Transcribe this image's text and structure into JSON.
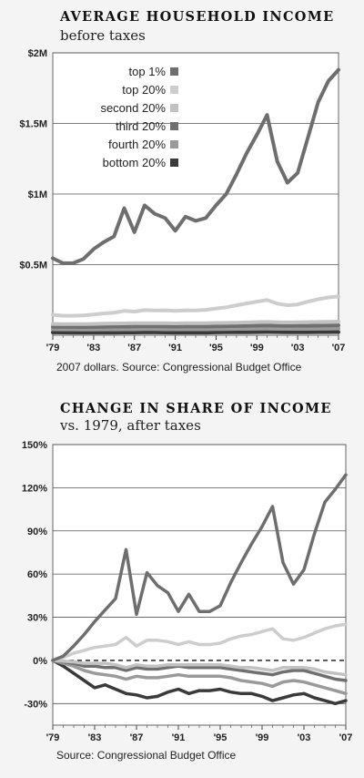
{
  "chart_data": [
    {
      "type": "line",
      "title": "AVERAGE HOUSEHOLD INCOME",
      "subtitle": "before taxes",
      "source": "2007 dollars. Source: Congressional Budget Office",
      "x": [
        1979,
        1980,
        1981,
        1982,
        1983,
        1984,
        1985,
        1986,
        1987,
        1988,
        1989,
        1990,
        1991,
        1992,
        1993,
        1994,
        1995,
        1996,
        1997,
        1998,
        1999,
        2000,
        2001,
        2002,
        2003,
        2004,
        2005,
        2006,
        2007
      ],
      "x_tick_labels": [
        "'79",
        "'83",
        "'87",
        "'91",
        "'95",
        "'99",
        "'03",
        "'07"
      ],
      "x_tick_values": [
        1979,
        1983,
        1987,
        1991,
        1995,
        1999,
        2003,
        2007
      ],
      "y_tick_labels": [
        "$0.5M",
        "$1M",
        "$1.5M",
        "$2M"
      ],
      "y_tick_values": [
        500000,
        1000000,
        1500000,
        2000000
      ],
      "ylim": [
        0,
        2000000
      ],
      "grid": true,
      "legend_position": "top-left",
      "series": [
        {
          "name": "top 1%",
          "color": "#6e6e6e",
          "values": [
            545000,
            510000,
            510000,
            540000,
            610000,
            660000,
            700000,
            900000,
            730000,
            920000,
            860000,
            830000,
            740000,
            840000,
            810000,
            830000,
            920000,
            1000000,
            1140000,
            1290000,
            1420000,
            1560000,
            1230000,
            1080000,
            1150000,
            1400000,
            1650000,
            1800000,
            1880000
          ]
        },
        {
          "name": "top 20%",
          "color": "#cdcdcd",
          "values": [
            145000,
            138000,
            138000,
            140000,
            147000,
            155000,
            160000,
            172000,
            168000,
            178000,
            176000,
            177000,
            172000,
            177000,
            176000,
            180000,
            190000,
            198000,
            212000,
            225000,
            238000,
            250000,
            224000,
            213000,
            218000,
            238000,
            255000,
            268000,
            275000
          ]
        },
        {
          "name": "second 20%",
          "color": "#c2c2c2",
          "values": [
            80000,
            79000,
            79000,
            79000,
            80000,
            82000,
            83000,
            84000,
            85000,
            86000,
            86000,
            85000,
            84000,
            85000,
            85000,
            86000,
            87000,
            88000,
            89000,
            91000,
            93000,
            94000,
            92000,
            91000,
            92000,
            93000,
            94000,
            95000,
            96000
          ]
        },
        {
          "name": "third 20%",
          "color": "#707070",
          "values": [
            60000,
            59000,
            59000,
            58000,
            59000,
            60000,
            61000,
            61000,
            62000,
            63000,
            63000,
            62000,
            61000,
            62000,
            62000,
            62000,
            63000,
            64000,
            65000,
            66000,
            68000,
            69000,
            67000,
            66000,
            67000,
            67000,
            68000,
            69000,
            70000
          ]
        },
        {
          "name": "fourth 20%",
          "color": "#9a9a9a",
          "values": [
            42000,
            41000,
            41000,
            40000,
            40000,
            41000,
            41000,
            42000,
            42000,
            43000,
            43000,
            42000,
            42000,
            42000,
            42000,
            42000,
            43000,
            44000,
            45000,
            46000,
            47000,
            47000,
            46000,
            46000,
            46000,
            46000,
            47000,
            48000,
            48000
          ]
        },
        {
          "name": "bottom 20%",
          "color": "#3a3a3a",
          "values": [
            20000,
            19500,
            19000,
            18500,
            18500,
            19000,
            19000,
            19500,
            19500,
            20000,
            20000,
            19500,
            19000,
            19000,
            19000,
            19000,
            20000,
            20500,
            21000,
            21500,
            22000,
            22500,
            22000,
            21500,
            21500,
            21500,
            22000,
            22000,
            22500
          ]
        }
      ]
    },
    {
      "type": "line",
      "title": "CHANGE IN SHARE OF INCOME",
      "subtitle": "vs. 1979, after taxes",
      "source": "Source: Congressional Budget Office",
      "x": [
        1979,
        1980,
        1981,
        1982,
        1983,
        1984,
        1985,
        1986,
        1987,
        1988,
        1989,
        1990,
        1991,
        1992,
        1993,
        1994,
        1995,
        1996,
        1997,
        1998,
        1999,
        2000,
        2001,
        2002,
        2003,
        2004,
        2005,
        2006,
        2007
      ],
      "x_tick_labels": [
        "'79",
        "'83",
        "'87",
        "'91",
        "'95",
        "'99",
        "'03",
        "'07"
      ],
      "x_tick_values": [
        1979,
        1983,
        1987,
        1991,
        1995,
        1999,
        2003,
        2007
      ],
      "y_tick_labels": [
        "-30%",
        "0%",
        "30%",
        "60%",
        "90%",
        "120%",
        "150%"
      ],
      "y_tick_values": [
        -30,
        0,
        30,
        60,
        90,
        120,
        150
      ],
      "ylim": [
        -45,
        150
      ],
      "grid": true,
      "zero_line": "dashed",
      "series": [
        {
          "name": "top 1%",
          "color": "#6e6e6e",
          "values": [
            0,
            3,
            10,
            18,
            27,
            35,
            43,
            77,
            32,
            61,
            52,
            47,
            34,
            46,
            34,
            34,
            38,
            54,
            68,
            81,
            93,
            107,
            68,
            53,
            63,
            88,
            110,
            119,
            129
          ]
        },
        {
          "name": "top 20%",
          "color": "#cdcdcd",
          "values": [
            0,
            2,
            5,
            7,
            9,
            10,
            11,
            16,
            10,
            14,
            14,
            13,
            11,
            13,
            11,
            11,
            12,
            15,
            17,
            18,
            20,
            22,
            15,
            14,
            16,
            19,
            22,
            24,
            25
          ]
        },
        {
          "name": "second 20%",
          "color": "#c2c2c2",
          "values": [
            0,
            -0.5,
            -1,
            -2,
            -2,
            -2,
            -3,
            -5,
            -3,
            -4,
            -4,
            -3,
            -3,
            -3,
            -3,
            -3,
            -3,
            -4,
            -5,
            -5,
            -6,
            -7,
            -5,
            -5,
            -5,
            -6,
            -8,
            -9,
            -10
          ]
        },
        {
          "name": "third 20%",
          "color": "#707070",
          "values": [
            0,
            -1,
            -2,
            -4,
            -4,
            -5,
            -5,
            -7,
            -5,
            -6,
            -6,
            -5,
            -4,
            -5,
            -5,
            -5,
            -5,
            -6,
            -7,
            -8,
            -9,
            -10,
            -8,
            -7,
            -7,
            -9,
            -11,
            -13,
            -14
          ]
        },
        {
          "name": "fourth 20%",
          "color": "#9a9a9a",
          "values": [
            0,
            -2,
            -4,
            -7,
            -9,
            -10,
            -11,
            -13,
            -11,
            -12,
            -12,
            -11,
            -10,
            -11,
            -11,
            -11,
            -11,
            -12,
            -14,
            -15,
            -16,
            -18,
            -15,
            -14,
            -15,
            -17,
            -19,
            -21,
            -23
          ]
        },
        {
          "name": "bottom 20%",
          "color": "#3a3a3a",
          "values": [
            0,
            -4,
            -9,
            -14,
            -19,
            -17,
            -20,
            -23,
            -24,
            -26,
            -25,
            -22,
            -20,
            -23,
            -21,
            -21,
            -20,
            -22,
            -23,
            -23,
            -25,
            -28,
            -26,
            -24,
            -23,
            -26,
            -28,
            -30,
            -28
          ]
        }
      ]
    }
  ]
}
